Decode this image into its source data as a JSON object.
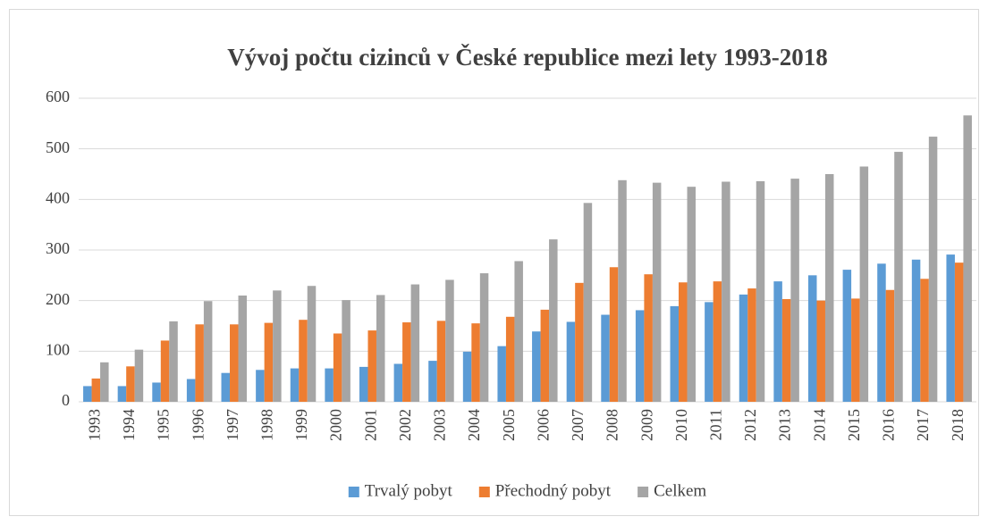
{
  "chart_data": {
    "type": "bar",
    "title": "Vývoj počtu cizinců v České republice mezi lety 1993-2018",
    "categories": [
      "1993",
      "1994",
      "1995",
      "1996",
      "1997",
      "1998",
      "1999",
      "2000",
      "2001",
      "2002",
      "2003",
      "2004",
      "2005",
      "2006",
      "2007",
      "2008",
      "2009",
      "2010",
      "2011",
      "2012",
      "2013",
      "2014",
      "2015",
      "2016",
      "2017",
      "2018"
    ],
    "series": [
      {
        "name": "Trvalý pobyt",
        "color": "#5b9bd5",
        "values": [
          31,
          31,
          38,
          45,
          57,
          63,
          66,
          66,
          69,
          75,
          81,
          99,
          110,
          139,
          158,
          172,
          181,
          189,
          197,
          212,
          238,
          250,
          261,
          273,
          281,
          291
        ]
      },
      {
        "name": "Přechodný pobyt",
        "color": "#ed7d31",
        "values": [
          46,
          70,
          121,
          153,
          153,
          156,
          162,
          135,
          141,
          157,
          160,
          155,
          168,
          182,
          235,
          266,
          252,
          236,
          238,
          224,
          203,
          200,
          204,
          221,
          243,
          275
        ]
      },
      {
        "name": "Celkem",
        "color": "#a5a5a5",
        "values": [
          78,
          103,
          159,
          199,
          210,
          220,
          229,
          201,
          211,
          232,
          241,
          254,
          278,
          321,
          393,
          438,
          433,
          425,
          435,
          436,
          441,
          450,
          465,
          494,
          524,
          566
        ]
      }
    ],
    "ylim": [
      0,
      600
    ],
    "yticks": [
      0,
      100,
      200,
      300,
      400,
      500,
      600
    ],
    "grid": true,
    "legend": "bottom"
  }
}
